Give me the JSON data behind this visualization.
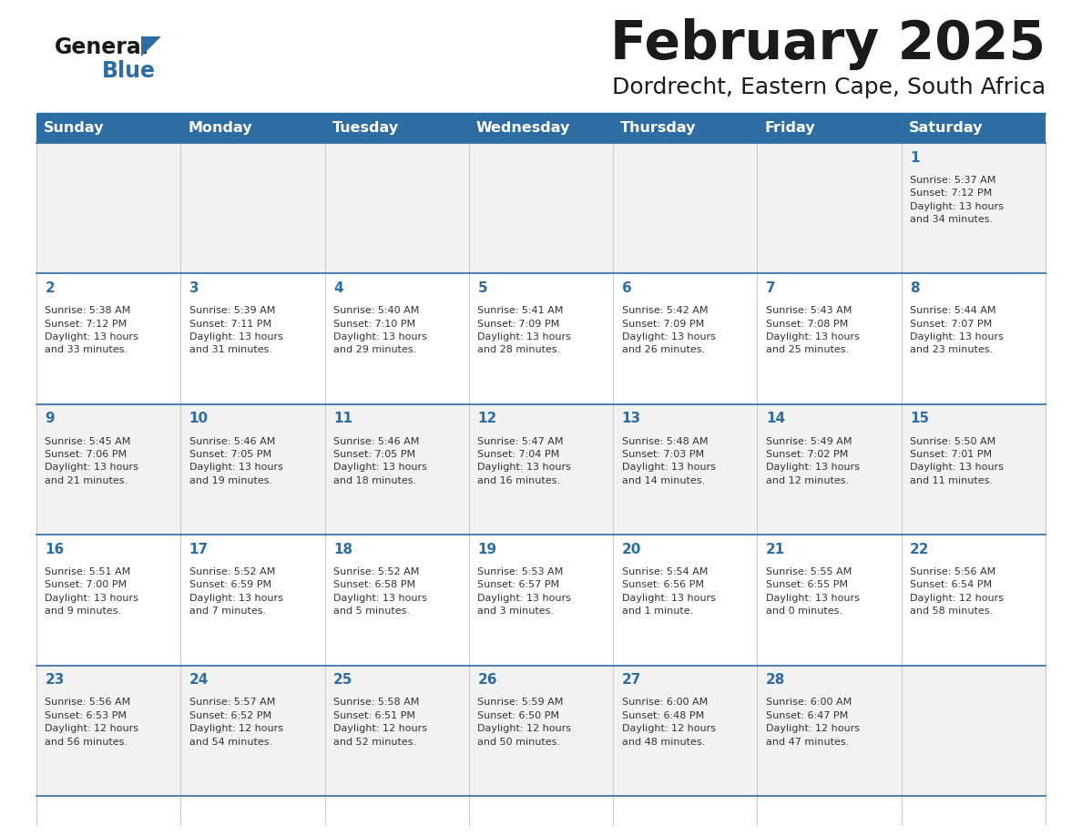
{
  "title": "February 2025",
  "subtitle": "Dordrecht, Eastern Cape, South Africa",
  "header_bg": "#2E6DA4",
  "header_text": "#FFFFFF",
  "cell_bg_odd": "#F2F2F2",
  "cell_bg_even": "#FFFFFF",
  "day_headers": [
    "Sunday",
    "Monday",
    "Tuesday",
    "Wednesday",
    "Thursday",
    "Friday",
    "Saturday"
  ],
  "title_color": "#1a1a1a",
  "subtitle_color": "#1a1a1a",
  "line_color": "#2E6DA4",
  "day_number_color": "#2E6DA4",
  "info_color": "#333333",
  "logo_text_color": "#1a1a1a",
  "logo_blue_color": "#2E6DA4",
  "days": [
    {
      "date": 1,
      "col": 6,
      "row": 0,
      "sunrise": "5:37 AM",
      "sunset": "7:12 PM",
      "daylight_hours": 13,
      "daylight_minutes": 34
    },
    {
      "date": 2,
      "col": 0,
      "row": 1,
      "sunrise": "5:38 AM",
      "sunset": "7:12 PM",
      "daylight_hours": 13,
      "daylight_minutes": 33
    },
    {
      "date": 3,
      "col": 1,
      "row": 1,
      "sunrise": "5:39 AM",
      "sunset": "7:11 PM",
      "daylight_hours": 13,
      "daylight_minutes": 31
    },
    {
      "date": 4,
      "col": 2,
      "row": 1,
      "sunrise": "5:40 AM",
      "sunset": "7:10 PM",
      "daylight_hours": 13,
      "daylight_minutes": 29
    },
    {
      "date": 5,
      "col": 3,
      "row": 1,
      "sunrise": "5:41 AM",
      "sunset": "7:09 PM",
      "daylight_hours": 13,
      "daylight_minutes": 28
    },
    {
      "date": 6,
      "col": 4,
      "row": 1,
      "sunrise": "5:42 AM",
      "sunset": "7:09 PM",
      "daylight_hours": 13,
      "daylight_minutes": 26
    },
    {
      "date": 7,
      "col": 5,
      "row": 1,
      "sunrise": "5:43 AM",
      "sunset": "7:08 PM",
      "daylight_hours": 13,
      "daylight_minutes": 25
    },
    {
      "date": 8,
      "col": 6,
      "row": 1,
      "sunrise": "5:44 AM",
      "sunset": "7:07 PM",
      "daylight_hours": 13,
      "daylight_minutes": 23
    },
    {
      "date": 9,
      "col": 0,
      "row": 2,
      "sunrise": "5:45 AM",
      "sunset": "7:06 PM",
      "daylight_hours": 13,
      "daylight_minutes": 21
    },
    {
      "date": 10,
      "col": 1,
      "row": 2,
      "sunrise": "5:46 AM",
      "sunset": "7:05 PM",
      "daylight_hours": 13,
      "daylight_minutes": 19
    },
    {
      "date": 11,
      "col": 2,
      "row": 2,
      "sunrise": "5:46 AM",
      "sunset": "7:05 PM",
      "daylight_hours": 13,
      "daylight_minutes": 18
    },
    {
      "date": 12,
      "col": 3,
      "row": 2,
      "sunrise": "5:47 AM",
      "sunset": "7:04 PM",
      "daylight_hours": 13,
      "daylight_minutes": 16
    },
    {
      "date": 13,
      "col": 4,
      "row": 2,
      "sunrise": "5:48 AM",
      "sunset": "7:03 PM",
      "daylight_hours": 13,
      "daylight_minutes": 14
    },
    {
      "date": 14,
      "col": 5,
      "row": 2,
      "sunrise": "5:49 AM",
      "sunset": "7:02 PM",
      "daylight_hours": 13,
      "daylight_minutes": 12
    },
    {
      "date": 15,
      "col": 6,
      "row": 2,
      "sunrise": "5:50 AM",
      "sunset": "7:01 PM",
      "daylight_hours": 13,
      "daylight_minutes": 11
    },
    {
      "date": 16,
      "col": 0,
      "row": 3,
      "sunrise": "5:51 AM",
      "sunset": "7:00 PM",
      "daylight_hours": 13,
      "daylight_minutes": 9
    },
    {
      "date": 17,
      "col": 1,
      "row": 3,
      "sunrise": "5:52 AM",
      "sunset": "6:59 PM",
      "daylight_hours": 13,
      "daylight_minutes": 7
    },
    {
      "date": 18,
      "col": 2,
      "row": 3,
      "sunrise": "5:52 AM",
      "sunset": "6:58 PM",
      "daylight_hours": 13,
      "daylight_minutes": 5
    },
    {
      "date": 19,
      "col": 3,
      "row": 3,
      "sunrise": "5:53 AM",
      "sunset": "6:57 PM",
      "daylight_hours": 13,
      "daylight_minutes": 3
    },
    {
      "date": 20,
      "col": 4,
      "row": 3,
      "sunrise": "5:54 AM",
      "sunset": "6:56 PM",
      "daylight_hours": 13,
      "daylight_minutes": 1
    },
    {
      "date": 21,
      "col": 5,
      "row": 3,
      "sunrise": "5:55 AM",
      "sunset": "6:55 PM",
      "daylight_hours": 13,
      "daylight_minutes": 0
    },
    {
      "date": 22,
      "col": 6,
      "row": 3,
      "sunrise": "5:56 AM",
      "sunset": "6:54 PM",
      "daylight_hours": 12,
      "daylight_minutes": 58
    },
    {
      "date": 23,
      "col": 0,
      "row": 4,
      "sunrise": "5:56 AM",
      "sunset": "6:53 PM",
      "daylight_hours": 12,
      "daylight_minutes": 56
    },
    {
      "date": 24,
      "col": 1,
      "row": 4,
      "sunrise": "5:57 AM",
      "sunset": "6:52 PM",
      "daylight_hours": 12,
      "daylight_minutes": 54
    },
    {
      "date": 25,
      "col": 2,
      "row": 4,
      "sunrise": "5:58 AM",
      "sunset": "6:51 PM",
      "daylight_hours": 12,
      "daylight_minutes": 52
    },
    {
      "date": 26,
      "col": 3,
      "row": 4,
      "sunrise": "5:59 AM",
      "sunset": "6:50 PM",
      "daylight_hours": 12,
      "daylight_minutes": 50
    },
    {
      "date": 27,
      "col": 4,
      "row": 4,
      "sunrise": "6:00 AM",
      "sunset": "6:48 PM",
      "daylight_hours": 12,
      "daylight_minutes": 48
    },
    {
      "date": 28,
      "col": 5,
      "row": 4,
      "sunrise": "6:00 AM",
      "sunset": "6:47 PM",
      "daylight_hours": 12,
      "daylight_minutes": 47
    }
  ]
}
